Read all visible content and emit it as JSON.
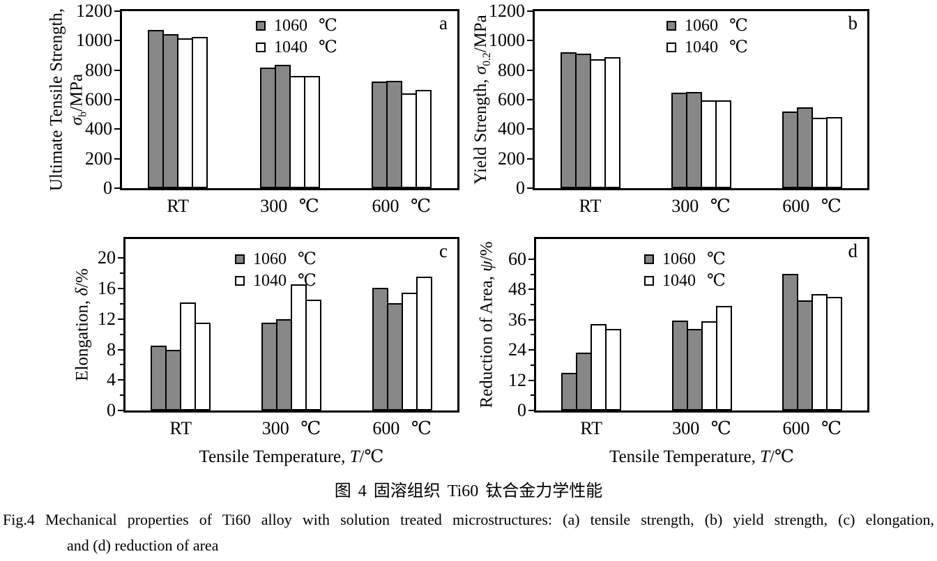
{
  "figure": {
    "caption_cn": "图 4  固溶组织 Ti60 钛合金力学性能",
    "caption_en_line1": "Fig.4  Mechanical properties of Ti60 alloy with solution treated microstructures: (a) tensile strength, (b) yield strength, (c) elongation,",
    "caption_en_line2": "and (d) reduction of area"
  },
  "colors": {
    "bar_gray": "#878787",
    "bar_white": "#ffffff",
    "axis": "#000000"
  },
  "legend": [
    {
      "label": "1060 ℃",
      "fill": "#878787"
    },
    {
      "label": "1040 ℃",
      "fill": "#ffffff"
    }
  ],
  "x_axis_title": "Tensile Temperature, T/℃",
  "x_axis_title_parts": [
    {
      "t": "Tensile Temperature, "
    },
    {
      "t": "T",
      "i": 1
    },
    {
      "t": "/℃"
    }
  ],
  "chart_data": [
    {
      "panel": "a",
      "type": "bar",
      "ylabel_text": "Ultimate Tensile Strength, σb/MPa",
      "ylabel_lines": [
        [
          {
            "t": "Ultimate Tensile Strength,"
          }
        ],
        [
          {
            "t": "σ",
            "i": 1
          },
          {
            "t": "b",
            "sub": 1
          },
          {
            "t": "/MPa"
          }
        ]
      ],
      "ylim": [
        0,
        1200
      ],
      "yticks": [
        0,
        200,
        400,
        600,
        800,
        1000,
        1200
      ],
      "categories": [
        "RT",
        "300 ℃",
        "600 ℃"
      ],
      "series": [
        {
          "name": "1060 ℃",
          "replicate": 1,
          "fill": "#878787",
          "values": [
            1072,
            818,
            722
          ]
        },
        {
          "name": "1060 ℃",
          "replicate": 2,
          "fill": "#878787",
          "values": [
            1044,
            834,
            728
          ]
        },
        {
          "name": "1040 ℃",
          "replicate": 1,
          "fill": "#ffffff",
          "values": [
            1018,
            762,
            642
          ]
        },
        {
          "name": "1040 ℃",
          "replicate": 2,
          "fill": "#ffffff",
          "values": [
            1026,
            762,
            668
          ]
        }
      ],
      "show_xlabel": false
    },
    {
      "panel": "b",
      "type": "bar",
      "ylabel_text": "Yield Strength, σ0.2/MPa",
      "ylabel_lines": [
        [
          {
            "t": "Yield Strength, "
          },
          {
            "t": "σ",
            "i": 1
          },
          {
            "t": "0.2",
            "sub": 1
          },
          {
            "t": "/MPa"
          }
        ]
      ],
      "ylim": [
        0,
        1200
      ],
      "yticks": [
        0,
        200,
        400,
        600,
        800,
        1000,
        1200
      ],
      "categories": [
        "RT",
        "300 ℃",
        "600 ℃"
      ],
      "series": [
        {
          "name": "1060 ℃",
          "replicate": 1,
          "fill": "#878787",
          "values": [
            920,
            645,
            522
          ]
        },
        {
          "name": "1060 ℃",
          "replicate": 2,
          "fill": "#878787",
          "values": [
            910,
            652,
            548
          ]
        },
        {
          "name": "1040 ℃",
          "replicate": 1,
          "fill": "#ffffff",
          "values": [
            873,
            597,
            476
          ]
        },
        {
          "name": "1040 ℃",
          "replicate": 2,
          "fill": "#ffffff",
          "values": [
            886,
            597,
            482
          ]
        }
      ],
      "show_xlabel": false
    },
    {
      "panel": "c",
      "type": "bar",
      "ylabel_text": "Elongation, δ/%",
      "ylabel_lines": [
        [
          {
            "t": "Elongation, "
          },
          {
            "t": "δ",
            "i": 1
          },
          {
            "t": "/%"
          }
        ]
      ],
      "ylim": [
        0,
        22.5
      ],
      "yticks": [
        0,
        4,
        8,
        12,
        16,
        20
      ],
      "yticks_minor": [
        2,
        6,
        10,
        14,
        18
      ],
      "categories": [
        "RT",
        "300 ℃",
        "600 ℃"
      ],
      "series": [
        {
          "name": "1060 ℃",
          "replicate": 1,
          "fill": "#878787",
          "values": [
            8.5,
            11.5,
            16.1
          ]
        },
        {
          "name": "1060 ℃",
          "replicate": 2,
          "fill": "#878787",
          "values": [
            8.0,
            12.0,
            14.1
          ]
        },
        {
          "name": "1040 ℃",
          "replicate": 1,
          "fill": "#ffffff",
          "values": [
            14.2,
            16.6,
            15.5
          ]
        },
        {
          "name": "1040 ℃",
          "replicate": 2,
          "fill": "#ffffff",
          "values": [
            11.5,
            14.5,
            17.6
          ]
        }
      ],
      "show_xlabel": true
    },
    {
      "panel": "d",
      "type": "bar",
      "ylabel_text": "Reduction of Area, ψ/%",
      "ylabel_lines": [
        [
          {
            "t": "Reduction of Area, "
          },
          {
            "t": "ψ",
            "i": 1
          },
          {
            "t": "/%"
          }
        ]
      ],
      "ylim": [
        0,
        68
      ],
      "yticks": [
        0,
        12,
        24,
        36,
        48,
        60
      ],
      "yticks_minor": [
        6,
        18,
        30,
        42,
        54
      ],
      "categories": [
        "RT",
        "300 ℃",
        "600 ℃"
      ],
      "series": [
        {
          "name": "1060 ℃",
          "replicate": 1,
          "fill": "#878787",
          "values": [
            14.8,
            35.8,
            54.3
          ]
        },
        {
          "name": "1060 ℃",
          "replicate": 2,
          "fill": "#878787",
          "values": [
            23.0,
            32.4,
            43.8
          ]
        },
        {
          "name": "1040 ℃",
          "replicate": 1,
          "fill": "#ffffff",
          "values": [
            34.3,
            35.5,
            46.3
          ]
        },
        {
          "name": "1040 ℃",
          "replicate": 2,
          "fill": "#ffffff",
          "values": [
            32.3,
            41.5,
            45.0
          ]
        }
      ],
      "show_xlabel": true
    }
  ]
}
